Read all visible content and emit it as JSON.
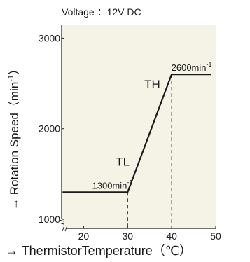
{
  "chart_data": {
    "type": "line",
    "subtitle": "Voltage ：12V DC",
    "xlabel": "→ ThermistorTemperature（℃）",
    "ylabel": "→ Rotation Speed（min",
    "ylabel_sup": "-1",
    "ylabel_close": "）",
    "xlim": [
      15,
      50
    ],
    "ylim": [
      900,
      3150
    ],
    "x_ticks": [
      {
        "value": 20,
        "label": "20"
      },
      {
        "value": 30,
        "label": "30"
      },
      {
        "value": 40,
        "label": "40"
      },
      {
        "value": 50,
        "label": "50"
      }
    ],
    "y_ticks": [
      {
        "value": 1000,
        "label": "1000"
      },
      {
        "value": 2000,
        "label": "2000"
      },
      {
        "value": 3000,
        "label": "3000"
      }
    ],
    "series": [
      {
        "values": [
          [
            15.2,
            1300
          ],
          [
            30,
            1300
          ],
          [
            40,
            2600
          ],
          [
            49,
            2600
          ]
        ],
        "color": "#1a1a1a"
      }
    ],
    "guides": [
      {
        "x": 30,
        "y": 1300
      },
      {
        "x": 40,
        "y": 2600
      }
    ],
    "annotations": [
      {
        "text": "TL",
        "x": 30,
        "y": 1300,
        "anchor": "left-above"
      },
      {
        "text": "TH",
        "x": 40,
        "y": 2600,
        "anchor": "left-below"
      }
    ],
    "data_labels": [
      {
        "main": "1300min",
        "sup": "-1",
        "x": 22,
        "y": 1300
      },
      {
        "main": "2600min",
        "sup": "-1",
        "x": 40,
        "y": 2600
      }
    ],
    "axis_break": true,
    "background": "#f5f2e6",
    "grid": false
  }
}
